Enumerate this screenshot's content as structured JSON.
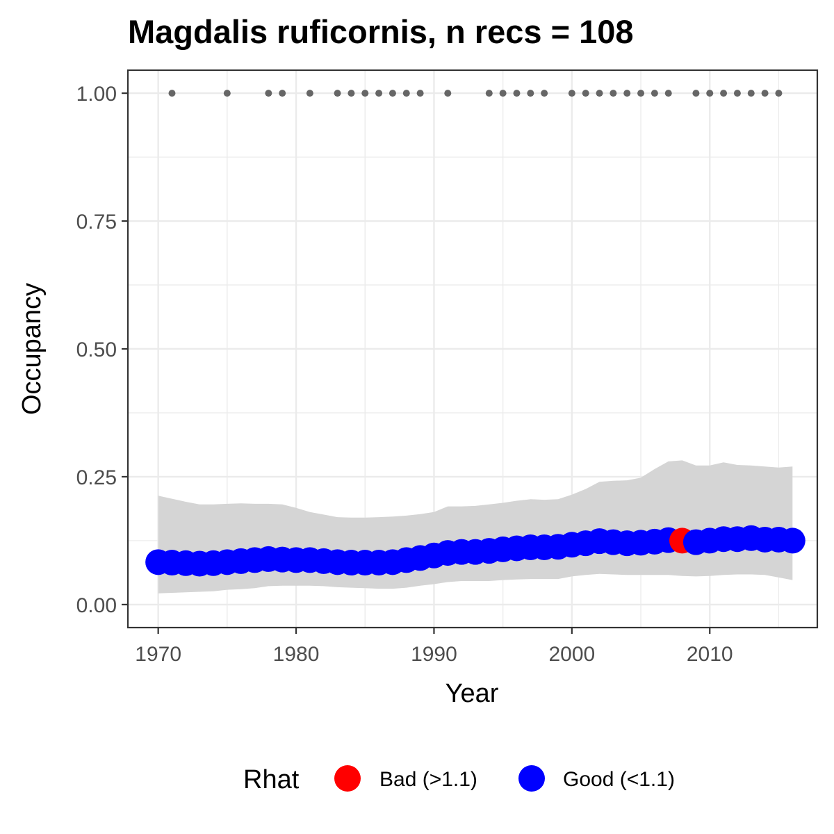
{
  "chart_data": {
    "type": "scatter",
    "title": "Magdalis ruficornis, n recs = 108",
    "xlabel": "Year",
    "ylabel": "Occupancy",
    "xlim": [
      1967.8,
      2017.8
    ],
    "ylim": [
      -0.045,
      1.045
    ],
    "x_ticks": [
      1970,
      1980,
      1990,
      2000,
      2010
    ],
    "x_tick_labels": [
      "1970",
      "1980",
      "1990",
      "2000",
      "2010"
    ],
    "y_ticks": [
      0.0,
      0.25,
      0.5,
      0.75,
      1.0
    ],
    "y_tick_labels": [
      "0.00",
      "0.25",
      "0.50",
      "0.75",
      "1.00"
    ],
    "grid": true,
    "legend_position": "bottom",
    "legend_title": "Rhat",
    "legend_entries": [
      {
        "label": "Bad (>1.1)",
        "color": "#ff0000"
      },
      {
        "label": "Good (<1.1)",
        "color": "#0000ff"
      }
    ],
    "colors": {
      "bad": "#ff0000",
      "good": "#0000ff",
      "ribbon": "#d5d5d5",
      "record_points": "#666666"
    },
    "years": [
      1970,
      1971,
      1972,
      1973,
      1974,
      1975,
      1976,
      1977,
      1978,
      1979,
      1980,
      1981,
      1982,
      1983,
      1984,
      1985,
      1986,
      1987,
      1988,
      1989,
      1990,
      1991,
      1992,
      1993,
      1994,
      1995,
      1996,
      1997,
      1998,
      1999,
      2000,
      2001,
      2002,
      2003,
      2004,
      2005,
      2006,
      2007,
      2008,
      2009,
      2010,
      2011,
      2012,
      2013,
      2014,
      2015,
      2016
    ],
    "occupancy_mean": [
      0.083,
      0.082,
      0.081,
      0.08,
      0.081,
      0.083,
      0.085,
      0.087,
      0.089,
      0.088,
      0.087,
      0.087,
      0.085,
      0.083,
      0.082,
      0.082,
      0.082,
      0.083,
      0.087,
      0.091,
      0.096,
      0.101,
      0.103,
      0.103,
      0.105,
      0.108,
      0.11,
      0.112,
      0.112,
      0.113,
      0.117,
      0.12,
      0.124,
      0.122,
      0.12,
      0.121,
      0.123,
      0.126,
      0.125,
      0.122,
      0.125,
      0.128,
      0.128,
      0.13,
      0.127,
      0.127,
      0.125
    ],
    "ci_lower": [
      0.022,
      0.023,
      0.024,
      0.025,
      0.026,
      0.029,
      0.03,
      0.032,
      0.036,
      0.037,
      0.037,
      0.037,
      0.036,
      0.034,
      0.033,
      0.032,
      0.031,
      0.031,
      0.033,
      0.037,
      0.04,
      0.044,
      0.046,
      0.046,
      0.046,
      0.048,
      0.049,
      0.05,
      0.05,
      0.05,
      0.055,
      0.058,
      0.06,
      0.059,
      0.058,
      0.058,
      0.058,
      0.058,
      0.056,
      0.055,
      0.056,
      0.058,
      0.059,
      0.059,
      0.058,
      0.053,
      0.048
    ],
    "ci_upper": [
      0.213,
      0.207,
      0.201,
      0.196,
      0.196,
      0.197,
      0.198,
      0.197,
      0.197,
      0.196,
      0.189,
      0.181,
      0.176,
      0.171,
      0.17,
      0.17,
      0.171,
      0.172,
      0.174,
      0.177,
      0.181,
      0.192,
      0.192,
      0.193,
      0.196,
      0.199,
      0.203,
      0.206,
      0.205,
      0.206,
      0.215,
      0.226,
      0.24,
      0.242,
      0.243,
      0.248,
      0.265,
      0.28,
      0.282,
      0.272,
      0.272,
      0.278,
      0.273,
      0.272,
      0.27,
      0.268,
      0.27
    ],
    "rhat_status": [
      "good",
      "good",
      "good",
      "good",
      "good",
      "good",
      "good",
      "good",
      "good",
      "good",
      "good",
      "good",
      "good",
      "good",
      "good",
      "good",
      "good",
      "good",
      "good",
      "good",
      "good",
      "good",
      "good",
      "good",
      "good",
      "good",
      "good",
      "good",
      "good",
      "good",
      "good",
      "good",
      "good",
      "good",
      "good",
      "good",
      "good",
      "good",
      "bad",
      "good",
      "good",
      "good",
      "good",
      "good",
      "good",
      "good",
      "good"
    ],
    "record_years": [
      1971,
      1975,
      1978,
      1979,
      1981,
      1983,
      1984,
      1985,
      1986,
      1987,
      1988,
      1989,
      1991,
      1994,
      1995,
      1996,
      1997,
      1998,
      2000,
      2001,
      2002,
      2003,
      2004,
      2005,
      2006,
      2007,
      2009,
      2010,
      2011,
      2012,
      2013,
      2014,
      2015
    ],
    "record_value": 1.0
  }
}
